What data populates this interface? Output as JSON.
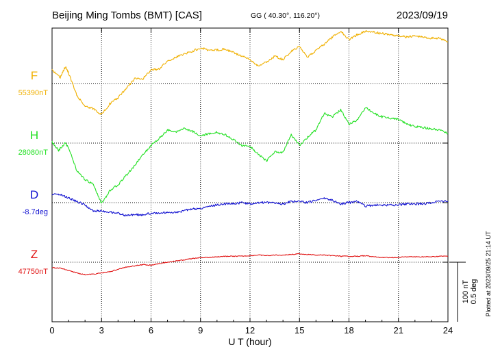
{
  "header": {
    "title": "Beijing Ming Tombs (BMT)  [CAS]",
    "coords": "GG ( 40.30°, 116.20°)",
    "date": "2023/09/19"
  },
  "plotted_at": "Plotted at 2023/09/25 21:14 UT",
  "scale_bar": {
    "nt": "100 nT",
    "deg": "0.5 deg"
  },
  "colors": {
    "F": "#f0b000",
    "H": "#22e022",
    "D": "#1010d0",
    "Z": "#e01010",
    "grid": "#000000"
  },
  "chart_data": {
    "type": "line",
    "xlabel": "U T (hour)",
    "xlim": [
      0,
      24
    ],
    "xticks": [
      0,
      3,
      6,
      9,
      12,
      15,
      18,
      21,
      24
    ],
    "grid": true,
    "baseline_unit_note": "vertical scale: 100 nT / 0.5 deg per scale bar",
    "series": [
      {
        "name": "F",
        "baseline_label": "55390nT",
        "unit": "nT",
        "baseline": 55390,
        "x": [
          0,
          0.5,
          0.8,
          1.0,
          1.5,
          2.0,
          2.5,
          3.0,
          3.5,
          4.0,
          4.5,
          5.0,
          5.5,
          6.0,
          6.5,
          7.0,
          7.5,
          8.0,
          8.5,
          9.0,
          9.5,
          10.0,
          10.5,
          11.0,
          11.5,
          12.0,
          12.5,
          13.0,
          13.5,
          14.0,
          14.5,
          15.0,
          15.5,
          16.0,
          16.5,
          17.0,
          17.5,
          18.0,
          18.5,
          19.0,
          19.5,
          20.0,
          20.5,
          21.0,
          21.5,
          22.0,
          22.5,
          23.0,
          23.5,
          24.0
        ],
        "y": [
          55412,
          55400,
          55418,
          55408,
          55370,
          55352,
          55348,
          55338,
          55356,
          55366,
          55382,
          55398,
          55398,
          55412,
          55415,
          55428,
          55434,
          55440,
          55444,
          55450,
          55446,
          55446,
          55448,
          55442,
          55436,
          55430,
          55420,
          55426,
          55436,
          55430,
          55444,
          55452,
          55434,
          55446,
          55456,
          55468,
          55478,
          55464,
          55472,
          55478,
          55476,
          55474,
          55472,
          55470,
          55468,
          55470,
          55468,
          55466,
          55466,
          55460
        ]
      },
      {
        "name": "H",
        "baseline_label": "28080nT",
        "unit": "nT",
        "baseline": 28080,
        "x": [
          0,
          0.4,
          0.8,
          1.0,
          1.5,
          2.0,
          2.5,
          3.0,
          3.5,
          4.0,
          4.5,
          5.0,
          5.5,
          6.0,
          6.5,
          7.0,
          7.5,
          8.0,
          8.5,
          9.0,
          9.5,
          10.0,
          10.5,
          11.0,
          11.5,
          12.0,
          12.5,
          13.0,
          13.5,
          14.0,
          14.5,
          15.0,
          15.5,
          16.0,
          16.5,
          17.0,
          17.5,
          18.0,
          18.5,
          19.0,
          19.5,
          20.0,
          20.5,
          21.0,
          21.5,
          22.0,
          22.5,
          23.0,
          23.5,
          24.0
        ],
        "y": [
          28082,
          28068,
          28080,
          28072,
          28034,
          28018,
          28012,
          27978,
          28000,
          28010,
          28026,
          28042,
          28060,
          28076,
          28088,
          28102,
          28098,
          28104,
          28100,
          28092,
          28096,
          28098,
          28094,
          28086,
          28076,
          28074,
          28062,
          28050,
          28066,
          28064,
          28094,
          28076,
          28090,
          28102,
          28130,
          28124,
          28136,
          28112,
          28118,
          28140,
          28130,
          28124,
          28122,
          28120,
          28112,
          28108,
          28106,
          28104,
          28102,
          28096
        ]
      },
      {
        "name": "D",
        "baseline_label": "-8.7deg",
        "unit": "deg",
        "baseline": -8.7,
        "x": [
          0,
          0.5,
          1.0,
          1.5,
          2.0,
          2.5,
          3.0,
          3.5,
          4.0,
          4.5,
          5.0,
          5.5,
          6.0,
          6.5,
          7.0,
          7.5,
          8.0,
          8.5,
          9.0,
          9.5,
          10.0,
          10.5,
          11.0,
          11.5,
          12.0,
          12.5,
          13.0,
          13.5,
          14.0,
          14.5,
          15.0,
          15.5,
          16.0,
          16.5,
          17.0,
          17.5,
          18.0,
          18.5,
          19.0,
          19.5,
          20.0,
          20.5,
          21.0,
          21.5,
          22.0,
          22.5,
          23.0,
          23.5,
          24.0
        ],
        "y": [
          -8.63,
          -8.63,
          -8.66,
          -8.69,
          -8.72,
          -8.77,
          -8.77,
          -8.78,
          -8.79,
          -8.81,
          -8.8,
          -8.8,
          -8.79,
          -8.79,
          -8.78,
          -8.78,
          -8.77,
          -8.75,
          -8.75,
          -8.73,
          -8.72,
          -8.71,
          -8.71,
          -8.7,
          -8.71,
          -8.7,
          -8.7,
          -8.7,
          -8.71,
          -8.69,
          -8.69,
          -8.7,
          -8.68,
          -8.66,
          -8.68,
          -8.71,
          -8.7,
          -8.69,
          -8.73,
          -8.72,
          -8.72,
          -8.72,
          -8.72,
          -8.71,
          -8.71,
          -8.71,
          -8.7,
          -8.69,
          -8.69
        ]
      },
      {
        "name": "Z",
        "baseline_label": "47750nT",
        "unit": "nT",
        "baseline": 47750,
        "x": [
          0,
          0.5,
          1.0,
          1.5,
          2.0,
          2.5,
          3.0,
          3.5,
          4.0,
          4.5,
          5.0,
          5.5,
          6.0,
          6.5,
          7.0,
          7.5,
          8.0,
          8.5,
          9.0,
          9.5,
          10.0,
          10.5,
          11.0,
          11.5,
          12.0,
          12.5,
          13.0,
          13.5,
          14.0,
          14.5,
          15.0,
          15.5,
          16.0,
          16.5,
          17.0,
          17.5,
          18.0,
          18.5,
          19.0,
          19.5,
          20.0,
          20.5,
          21.0,
          21.5,
          22.0,
          22.5,
          23.0,
          23.5,
          24.0
        ],
        "y": [
          47741,
          47740,
          47736,
          47732,
          47729,
          47730,
          47732,
          47734,
          47738,
          47742,
          47744,
          47746,
          47745,
          47748,
          47750,
          47752,
          47754,
          47756,
          47758,
          47758,
          47759,
          47760,
          47760,
          47760,
          47761,
          47762,
          47761,
          47762,
          47762,
          47763,
          47764,
          47763,
          47762,
          47762,
          47761,
          47760,
          47760,
          47760,
          47761,
          47759,
          47758,
          47758,
          47758,
          47759,
          47759,
          47759,
          47759,
          47760,
          47760
        ]
      }
    ]
  }
}
